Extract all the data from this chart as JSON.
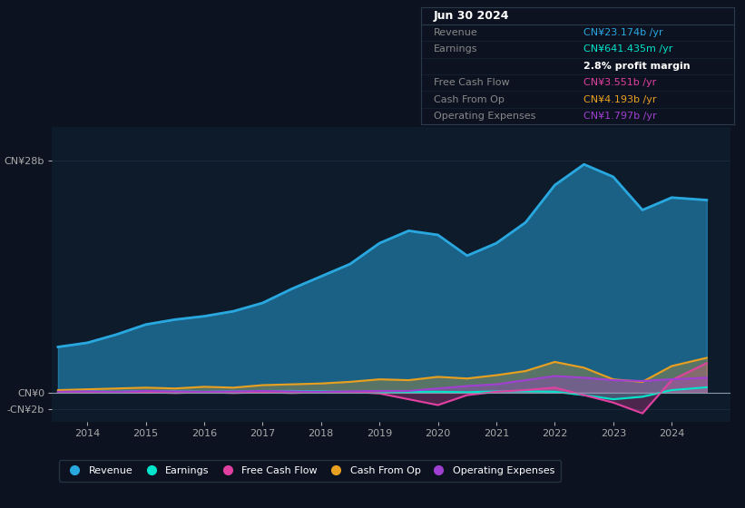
{
  "background_color": "#0c1220",
  "plot_bg_color": "#0d1b2a",
  "grid_color": "#1a2a3a",
  "yticks_labels": [
    "CN¥28b",
    "CN¥0",
    "-CN¥2b"
  ],
  "yticks_values": [
    28,
    0,
    -2
  ],
  "ylim": [
    -3.5,
    32
  ],
  "xlim": [
    2013.4,
    2025.0
  ],
  "xticks": [
    2014,
    2015,
    2016,
    2017,
    2018,
    2019,
    2020,
    2021,
    2022,
    2023,
    2024
  ],
  "revenue_color": "#29a8e0",
  "earnings_color": "#00e5cc",
  "fcf_color": "#e040a0",
  "cashfromop_color": "#e8a020",
  "opex_color": "#a040d0",
  "legend_items": [
    "Revenue",
    "Earnings",
    "Free Cash Flow",
    "Cash From Op",
    "Operating Expenses"
  ],
  "legend_colors": [
    "#29a8e0",
    "#00e5cc",
    "#e040a0",
    "#e8a020",
    "#a040d0"
  ],
  "revenue_x": [
    2013.5,
    2014.0,
    2014.5,
    2015.0,
    2015.5,
    2016.0,
    2016.5,
    2017.0,
    2017.5,
    2018.0,
    2018.5,
    2019.0,
    2019.5,
    2020.0,
    2020.5,
    2021.0,
    2021.5,
    2022.0,
    2022.5,
    2023.0,
    2023.5,
    2024.0,
    2024.6
  ],
  "revenue_y": [
    5.5,
    6.0,
    7.0,
    8.2,
    8.8,
    9.2,
    9.8,
    10.8,
    12.5,
    14.0,
    15.5,
    18.0,
    19.5,
    19.0,
    16.5,
    18.0,
    20.5,
    25.0,
    27.5,
    26.0,
    22.0,
    23.5,
    23.2
  ],
  "earnings_x": [
    2013.5,
    2014.0,
    2014.5,
    2015.0,
    2015.5,
    2016.0,
    2016.5,
    2017.0,
    2017.5,
    2018.0,
    2018.5,
    2019.0,
    2019.5,
    2020.0,
    2020.5,
    2021.0,
    2021.5,
    2022.0,
    2022.5,
    2023.0,
    2023.5,
    2024.0,
    2024.6
  ],
  "earnings_y": [
    0.1,
    0.15,
    0.1,
    0.2,
    0.15,
    0.1,
    0.15,
    0.2,
    0.2,
    0.15,
    0.1,
    0.15,
    0.1,
    0.1,
    0.05,
    0.15,
    0.15,
    0.1,
    -0.3,
    -0.8,
    -0.5,
    0.3,
    0.64
  ],
  "fcf_x": [
    2013.5,
    2014.0,
    2014.5,
    2015.0,
    2015.5,
    2016.0,
    2016.5,
    2017.0,
    2017.5,
    2018.0,
    2018.5,
    2019.0,
    2019.5,
    2020.0,
    2020.5,
    2021.0,
    2021.5,
    2022.0,
    2022.5,
    2023.0,
    2023.5,
    2024.0,
    2024.6
  ],
  "fcf_y": [
    0.05,
    0.1,
    0.0,
    0.05,
    -0.05,
    0.05,
    -0.05,
    0.05,
    -0.05,
    0.05,
    0.1,
    -0.1,
    -0.8,
    -1.5,
    -0.3,
    0.1,
    0.3,
    0.6,
    -0.3,
    -1.2,
    -2.5,
    1.5,
    3.55
  ],
  "cashfromop_x": [
    2013.5,
    2014.0,
    2014.5,
    2015.0,
    2015.5,
    2016.0,
    2016.5,
    2017.0,
    2017.5,
    2018.0,
    2018.5,
    2019.0,
    2019.5,
    2020.0,
    2020.5,
    2021.0,
    2021.5,
    2022.0,
    2022.5,
    2023.0,
    2023.5,
    2024.0,
    2024.6
  ],
  "cashfromop_y": [
    0.3,
    0.4,
    0.5,
    0.6,
    0.5,
    0.7,
    0.6,
    0.9,
    1.0,
    1.1,
    1.3,
    1.6,
    1.5,
    1.9,
    1.7,
    2.1,
    2.6,
    3.7,
    3.0,
    1.6,
    1.3,
    3.2,
    4.19
  ],
  "opex_x": [
    2013.5,
    2014.0,
    2014.5,
    2015.0,
    2015.5,
    2016.0,
    2016.5,
    2017.0,
    2017.5,
    2018.0,
    2018.5,
    2019.0,
    2019.5,
    2020.0,
    2020.5,
    2021.0,
    2021.5,
    2022.0,
    2022.5,
    2023.0,
    2023.5,
    2024.0,
    2024.6
  ],
  "opex_y": [
    0.1,
    0.15,
    0.1,
    0.2,
    0.15,
    0.1,
    0.15,
    0.2,
    0.15,
    0.1,
    0.15,
    0.2,
    0.2,
    0.5,
    0.8,
    1.0,
    1.5,
    2.0,
    1.8,
    1.5,
    1.4,
    1.6,
    1.8
  ],
  "tooltip_bg": "#0c1220",
  "tooltip_border": "#2a3a4a",
  "info_title": "Jun 30 2024",
  "info_revenue": "CN¥23.174b /yr",
  "info_earnings": "CN¥641.435m /yr",
  "info_profit_margin": "2.8% profit margin",
  "info_fcf": "CN¥3.551b /yr",
  "info_cashop": "CN¥4.193b /yr",
  "info_opex": "CN¥1.797b /yr"
}
